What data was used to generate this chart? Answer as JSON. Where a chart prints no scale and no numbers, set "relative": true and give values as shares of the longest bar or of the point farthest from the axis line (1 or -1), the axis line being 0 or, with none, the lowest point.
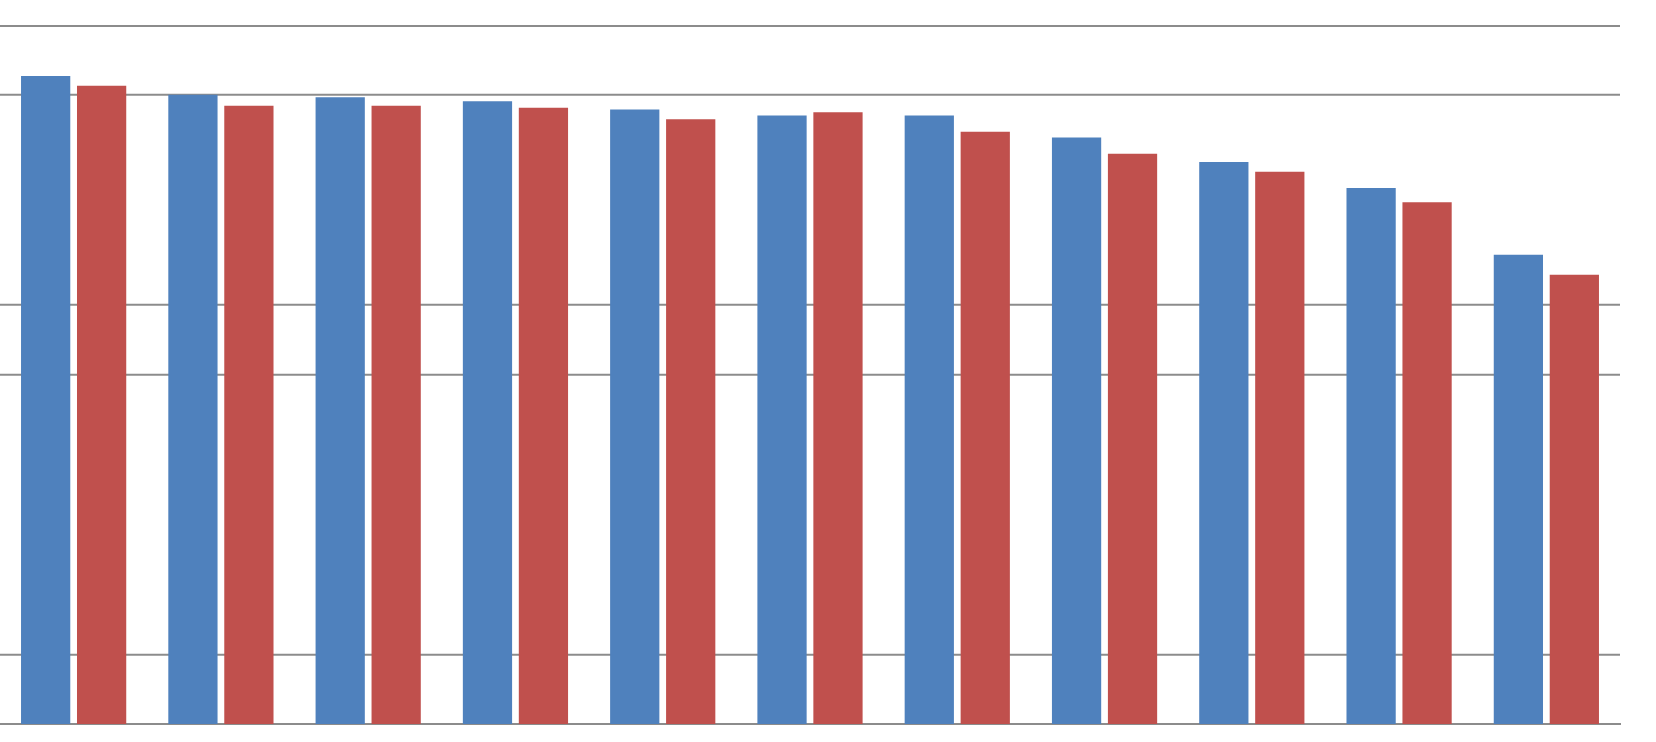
{
  "chart_data": {
    "type": "bar",
    "relative": true,
    "categories": [
      null,
      null,
      null,
      null,
      null,
      null,
      null,
      null,
      null,
      null,
      null
    ],
    "series": [
      {
        "color": "#4f81bd",
        "values": [
          1,
          0.971,
          0.967,
          0.961,
          0.948,
          0.939,
          0.939,
          0.905,
          0.867,
          0.827,
          0.724
        ]
      },
      {
        "color": "#c0504d",
        "values": [
          0.985,
          0.954,
          0.954,
          0.951,
          0.933,
          0.944,
          0.914,
          0.88,
          0.852,
          0.805,
          0.693
        ]
      }
    ],
    "ref_lines": [
      {
        "axis": "y",
        "value": 1.077,
        "color": "#8c8c8c"
      },
      {
        "axis": "y",
        "value": 0.971,
        "color": "#8c8c8c"
      },
      {
        "axis": "y",
        "value": 0.647,
        "color": "#8c8c8c"
      },
      {
        "axis": "y",
        "value": 0.539,
        "color": "#8c8c8c"
      },
      {
        "axis": "y",
        "value": 0.107,
        "color": "#8c8c8c"
      }
    ],
    "legend": false
  }
}
